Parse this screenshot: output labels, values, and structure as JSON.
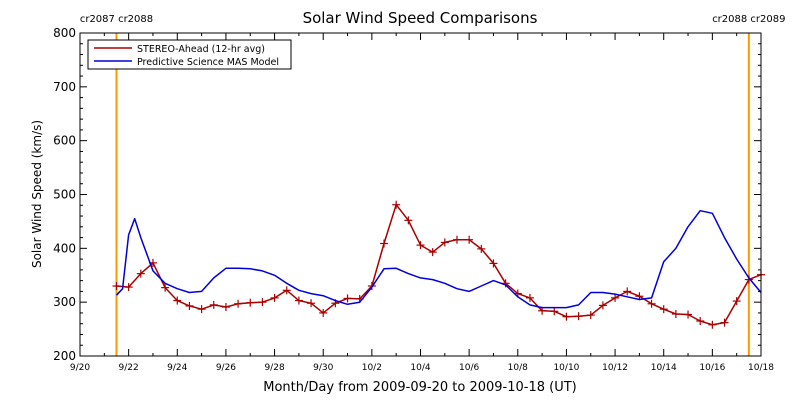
{
  "chart_data": {
    "type": "line",
    "title": "Solar Wind Speed Comparisons",
    "xlabel": "Month/Day from 2009-09-20 to 2009-10-18 (UT)",
    "ylabel": "Solar Wind Speed (km/s)",
    "xlim": [
      "2009-09-20",
      "2009-10-18"
    ],
    "ylim": [
      200,
      800
    ],
    "y_ticks": [
      200,
      300,
      400,
      500,
      600,
      700,
      800
    ],
    "x_ticks": [
      {
        "date": "2009-09-20",
        "label": "9/20"
      },
      {
        "date": "2009-09-22",
        "label": "9/22"
      },
      {
        "date": "2009-09-24",
        "label": "9/24"
      },
      {
        "date": "2009-09-26",
        "label": "9/26"
      },
      {
        "date": "2009-09-28",
        "label": "9/28"
      },
      {
        "date": "2009-09-30",
        "label": "9/30"
      },
      {
        "date": "2009-10-02",
        "label": "10/2"
      },
      {
        "date": "2009-10-04",
        "label": "10/4"
      },
      {
        "date": "2009-10-06",
        "label": "10/6"
      },
      {
        "date": "2009-10-08",
        "label": "10/8"
      },
      {
        "date": "2009-10-10",
        "label": "10/10"
      },
      {
        "date": "2009-10-12",
        "label": "10/12"
      },
      {
        "date": "2009-10-14",
        "label": "10/14"
      },
      {
        "date": "2009-10-16",
        "label": "10/16"
      },
      {
        "date": "2009-10-18",
        "label": "10/18"
      }
    ],
    "grid": false,
    "legend_position": "top-left",
    "markers": [
      {
        "date": "2009-09-21 12:00",
        "labels": [
          "cr2087",
          "cr2088"
        ],
        "color": "#ff9900"
      },
      {
        "date": "2009-10-17 12:00",
        "labels": [
          "cr2088",
          "cr2089"
        ],
        "color": "#ff9900"
      }
    ],
    "series": [
      {
        "name": "STEREO-Ahead (12-hr avg)",
        "color": "#aa0000",
        "marker": "plus",
        "x": [
          "2009-09-21 12:00",
          "2009-09-22 00:00",
          "2009-09-22 12:00",
          "2009-09-23 00:00",
          "2009-09-23 12:00",
          "2009-09-24 00:00",
          "2009-09-24 12:00",
          "2009-09-25 00:00",
          "2009-09-25 12:00",
          "2009-09-26 00:00",
          "2009-09-26 12:00",
          "2009-09-27 00:00",
          "2009-09-27 12:00",
          "2009-09-28 00:00",
          "2009-09-28 12:00",
          "2009-09-29 00:00",
          "2009-09-29 12:00",
          "2009-09-30 00:00",
          "2009-09-30 12:00",
          "2009-10-01 00:00",
          "2009-10-01 12:00",
          "2009-10-02 00:00",
          "2009-10-02 12:00",
          "2009-10-03 00:00",
          "2009-10-03 12:00",
          "2009-10-04 00:00",
          "2009-10-04 12:00",
          "2009-10-05 00:00",
          "2009-10-05 12:00",
          "2009-10-06 00:00",
          "2009-10-06 12:00",
          "2009-10-07 00:00",
          "2009-10-07 12:00",
          "2009-10-08 00:00",
          "2009-10-08 12:00",
          "2009-10-09 00:00",
          "2009-10-09 12:00",
          "2009-10-10 00:00",
          "2009-10-10 12:00",
          "2009-10-11 00:00",
          "2009-10-11 12:00",
          "2009-10-12 00:00",
          "2009-10-12 12:00",
          "2009-10-13 00:00",
          "2009-10-13 12:00",
          "2009-10-14 00:00",
          "2009-10-14 12:00",
          "2009-10-15 00:00",
          "2009-10-15 12:00",
          "2009-10-16 00:00",
          "2009-10-16 12:00",
          "2009-10-17 00:00",
          "2009-10-17 12:00",
          "2009-10-18 00:00"
        ],
        "values": [
          330,
          328,
          353,
          373,
          327,
          303,
          293,
          287,
          295,
          291,
          297,
          299,
          300,
          308,
          322,
          303,
          298,
          280,
          298,
          307,
          306,
          330,
          409,
          481,
          452,
          406,
          393,
          411,
          416,
          416,
          399,
          372,
          335,
          316,
          308,
          284,
          283,
          273,
          274,
          276,
          294,
          308,
          320,
          311,
          297,
          287,
          278,
          277,
          265,
          258,
          262,
          302,
          342,
          351
        ]
      },
      {
        "name": "Predictive Science MAS Model",
        "color": "#0000dd",
        "marker": "none",
        "x": [
          "2009-09-21 12:00",
          "2009-09-21 18:00",
          "2009-09-22 00:00",
          "2009-09-22 06:00",
          "2009-09-22 12:00",
          "2009-09-23 00:00",
          "2009-09-23 12:00",
          "2009-09-24 00:00",
          "2009-09-24 12:00",
          "2009-09-25 00:00",
          "2009-09-25 12:00",
          "2009-09-26 00:00",
          "2009-09-26 12:00",
          "2009-09-27 00:00",
          "2009-09-27 12:00",
          "2009-09-28 00:00",
          "2009-09-28 12:00",
          "2009-09-29 00:00",
          "2009-09-29 12:00",
          "2009-09-30 00:00",
          "2009-09-30 12:00",
          "2009-10-01 00:00",
          "2009-10-01 12:00",
          "2009-10-02 00:00",
          "2009-10-02 12:00",
          "2009-10-03 00:00",
          "2009-10-03 12:00",
          "2009-10-04 00:00",
          "2009-10-04 12:00",
          "2009-10-05 00:00",
          "2009-10-05 12:00",
          "2009-10-06 00:00",
          "2009-10-06 12:00",
          "2009-10-07 00:00",
          "2009-10-07 12:00",
          "2009-10-08 00:00",
          "2009-10-08 12:00",
          "2009-10-09 00:00",
          "2009-10-09 12:00",
          "2009-10-10 00:00",
          "2009-10-10 12:00",
          "2009-10-11 00:00",
          "2009-10-11 12:00",
          "2009-10-12 00:00",
          "2009-10-12 12:00",
          "2009-10-13 00:00",
          "2009-10-13 12:00",
          "2009-10-14 00:00",
          "2009-10-14 12:00",
          "2009-10-15 00:00",
          "2009-10-15 12:00",
          "2009-10-16 00:00",
          "2009-10-16 12:00",
          "2009-10-17 00:00",
          "2009-10-17 12:00",
          "2009-10-18 00:00"
        ],
        "values": [
          313,
          325,
          425,
          455,
          420,
          358,
          335,
          325,
          318,
          320,
          345,
          363,
          363,
          362,
          358,
          350,
          335,
          322,
          316,
          312,
          303,
          296,
          300,
          328,
          362,
          363,
          353,
          345,
          342,
          335,
          325,
          320,
          330,
          340,
          332,
          310,
          295,
          290,
          290,
          290,
          295,
          318,
          318,
          315,
          310,
          305,
          308,
          375,
          400,
          440,
          470,
          465,
          420,
          380,
          345,
          318
        ]
      }
    ]
  }
}
